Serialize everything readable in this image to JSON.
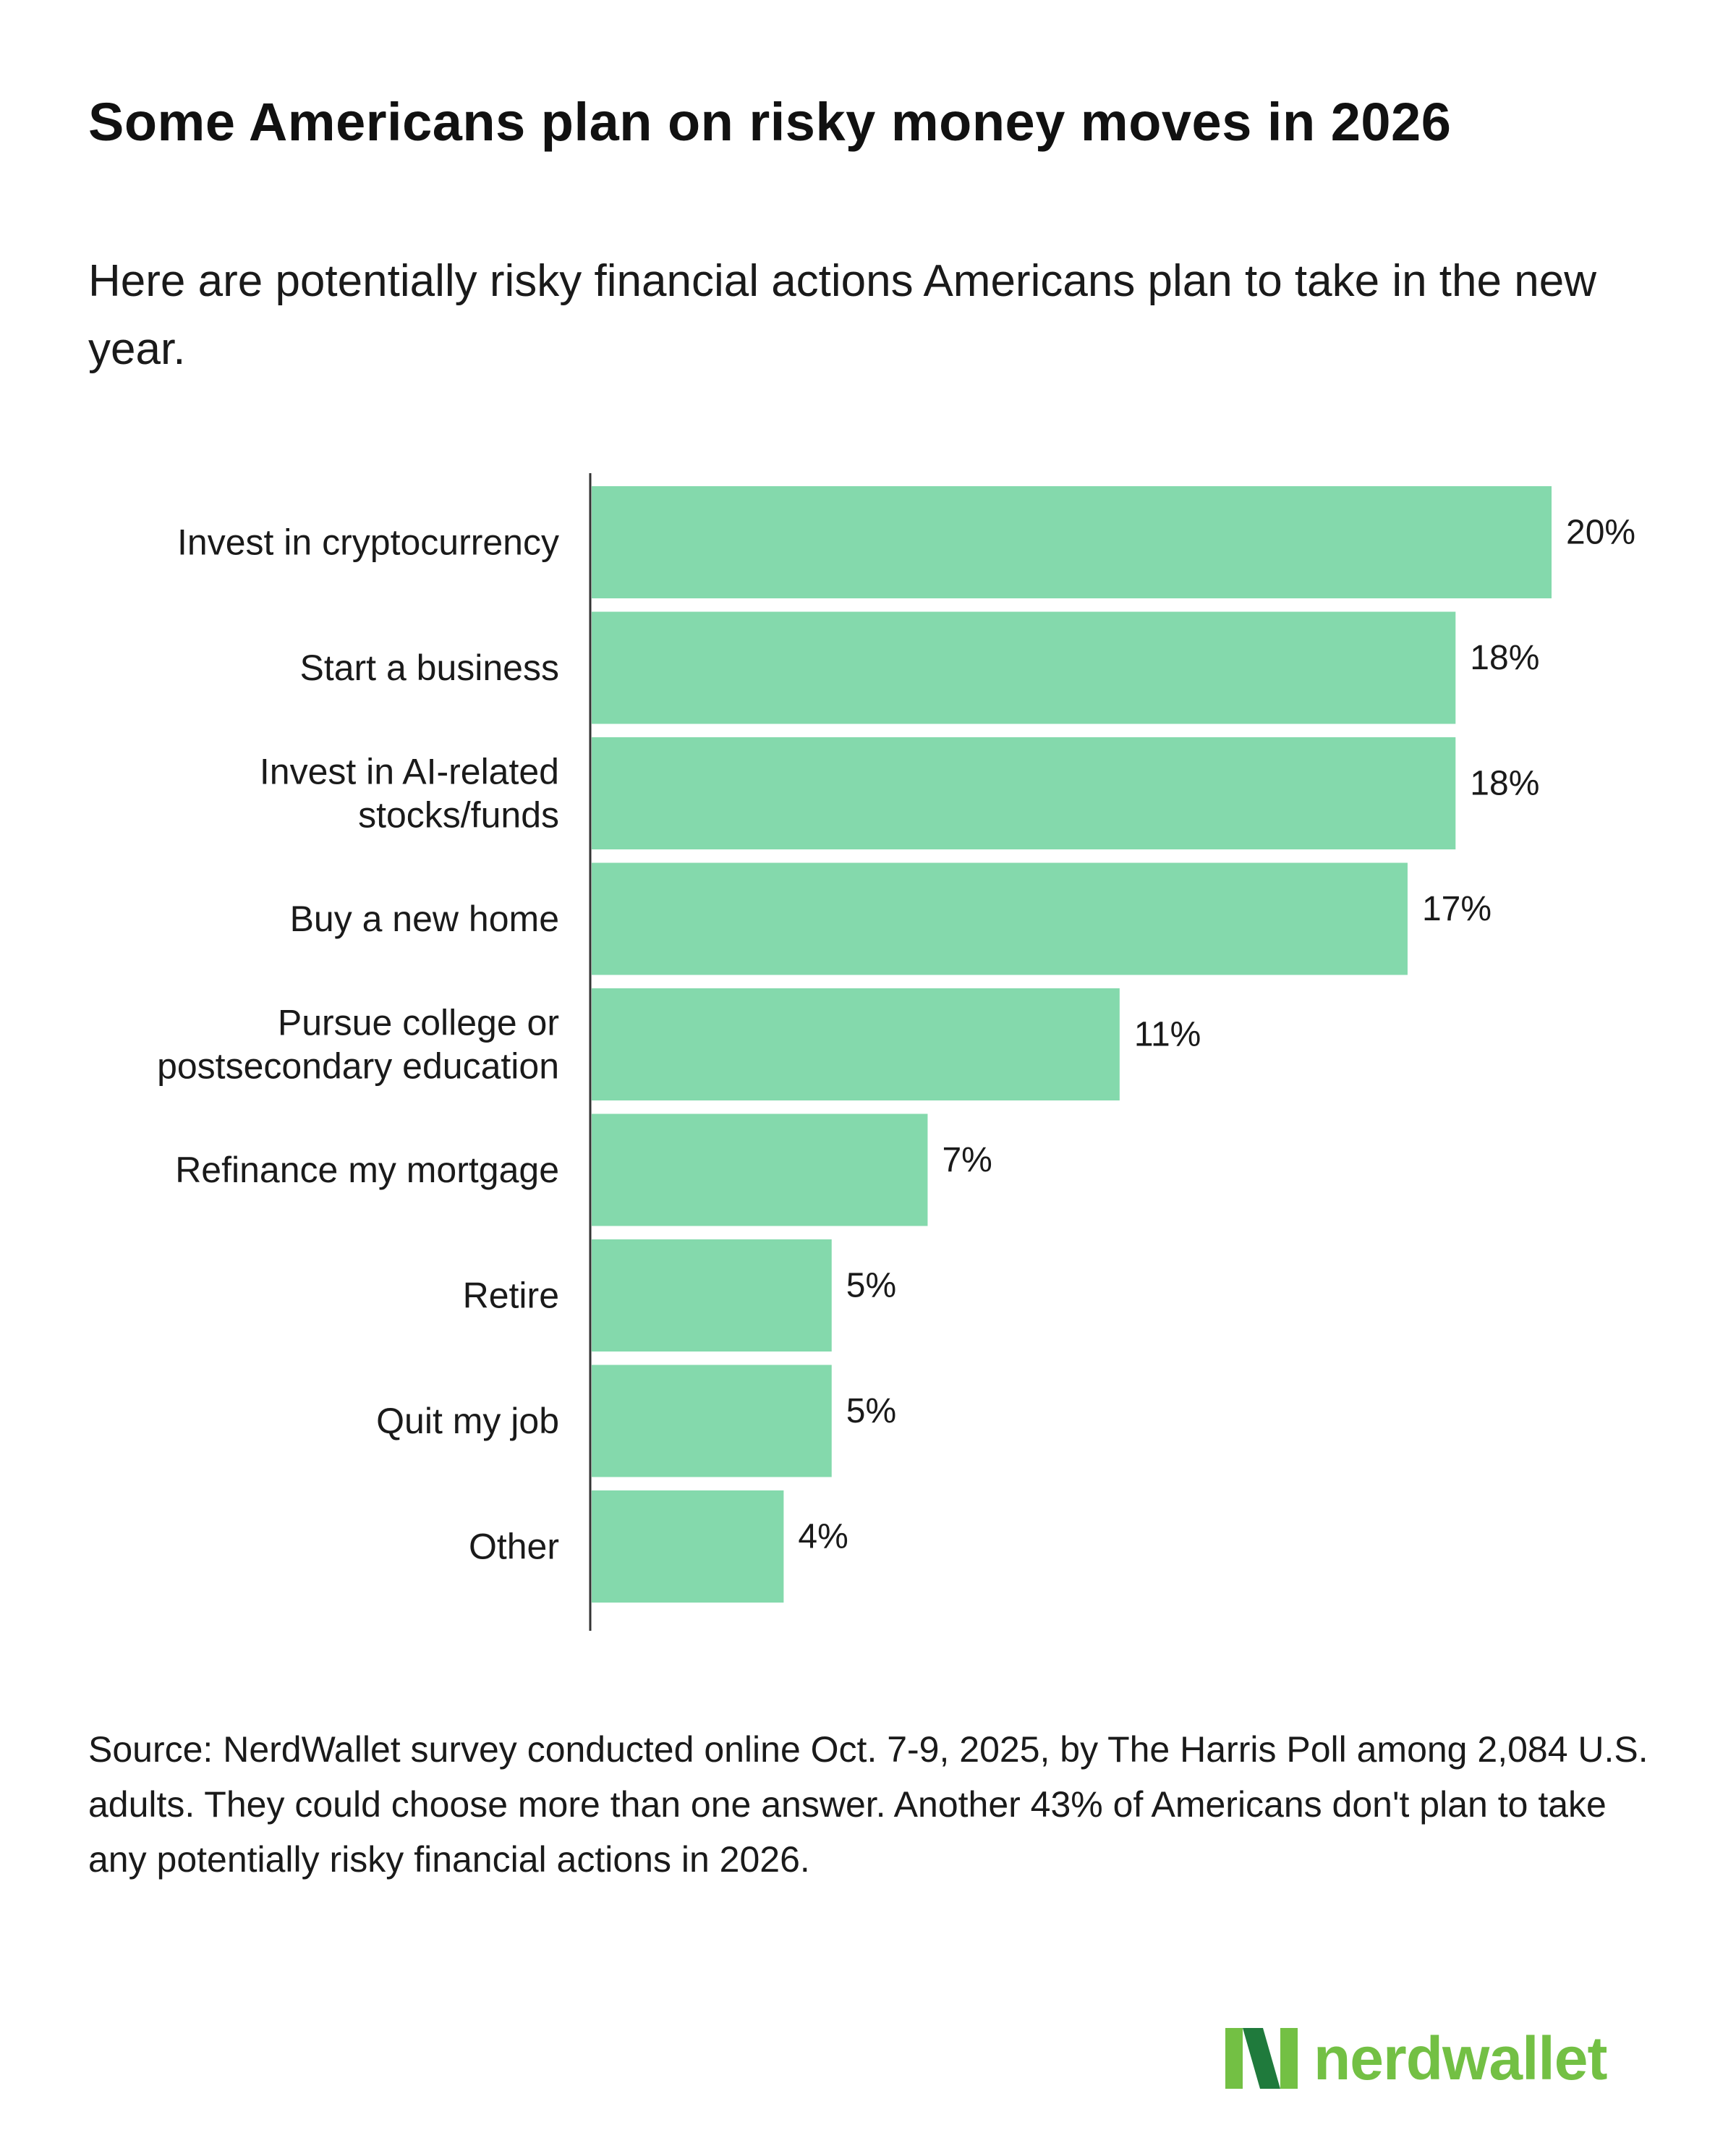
{
  "title": "Some Americans plan on risky money moves in 2026",
  "subtitle": "Here are potentially risky financial actions Americans plan to take in the new year.",
  "source": "Source: NerdWallet survey conducted online Oct. 7-9, 2025, by The Harris Poll among 2,084 U.S. adults. They could choose more than one answer. Another 43% of Americans don't plan to take any potentially risky financial actions in 2026.",
  "brand": {
    "name": "nerdwallet",
    "text_color": "#73c044",
    "mark_colors": [
      "#1f7a3c",
      "#73c044"
    ]
  },
  "colors": {
    "bar": "#84d9ac",
    "axis": "#333333"
  },
  "chart_data": {
    "type": "bar",
    "orientation": "horizontal",
    "title": "Some Americans plan on risky money moves in 2026",
    "xlabel": "",
    "ylabel": "",
    "xlim": [
      0,
      20
    ],
    "grid": false,
    "categories": [
      [
        "Invest in cryptocurrency"
      ],
      [
        "Start a business"
      ],
      [
        "Invest in AI-related",
        "stocks/funds"
      ],
      [
        "Buy a new home"
      ],
      [
        "Pursue college or",
        "postsecondary education"
      ],
      [
        "Refinance my mortgage"
      ],
      [
        "Retire"
      ],
      [
        "Quit my job"
      ],
      [
        "Other"
      ]
    ],
    "values": [
      20,
      18,
      18,
      17,
      11,
      7,
      5,
      5,
      4
    ],
    "value_labels": [
      "20%",
      "18%",
      "18%",
      "17%",
      "11%",
      "7%",
      "5%",
      "5%",
      "4%"
    ],
    "unit": "%"
  }
}
